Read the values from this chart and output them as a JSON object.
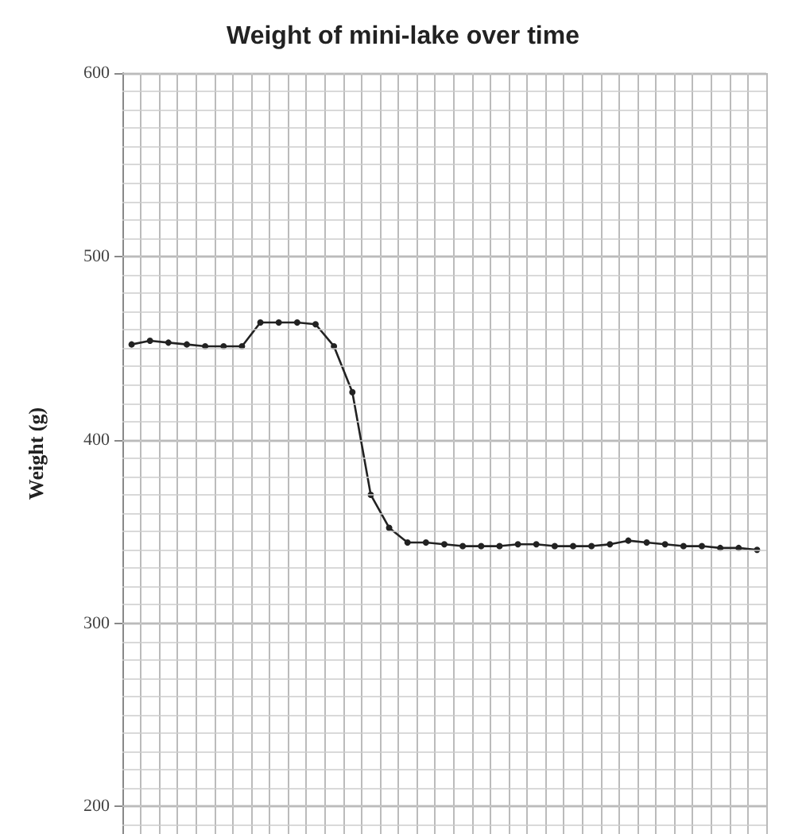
{
  "chart_data": {
    "type": "line",
    "title": "Weight of mini-lake over time",
    "ylabel": "Weight (g)",
    "categories": [
      null,
      null,
      null,
      null,
      null,
      null,
      null,
      null,
      null,
      null,
      null,
      null,
      null,
      null,
      null,
      null,
      null,
      null,
      null,
      null,
      null,
      null,
      null,
      null,
      null,
      null,
      null,
      null,
      null,
      null,
      null,
      null,
      null,
      null,
      null
    ],
    "series": [
      {
        "color": "#222222",
        "values": [
          452,
          454,
          453,
          452,
          451,
          451,
          451,
          464,
          464,
          464,
          463,
          451,
          426,
          370,
          352,
          344,
          344,
          343,
          342,
          342,
          342,
          343,
          343,
          342,
          342,
          342,
          343,
          345,
          344,
          343,
          342,
          342,
          341,
          341,
          340
        ]
      }
    ],
    "ylim": [
      185,
      600
    ],
    "yticks": [
      200,
      300,
      400,
      500,
      600
    ],
    "grid": true,
    "marker": "circle",
    "line_style": "solid",
    "tick_labels": "y"
  }
}
